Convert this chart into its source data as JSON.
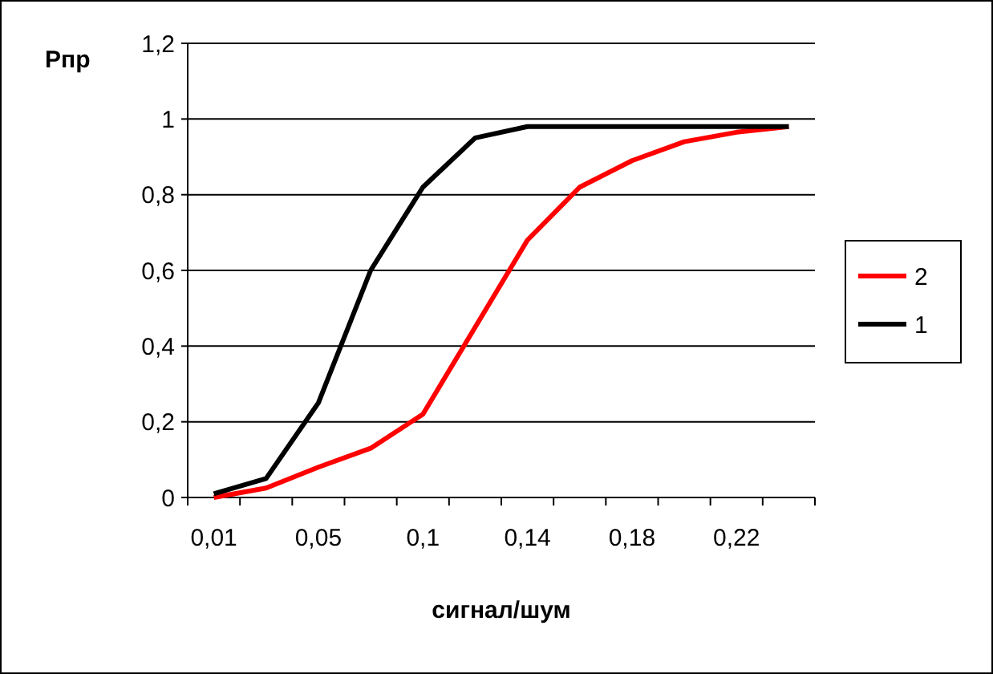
{
  "chart_data": {
    "type": "line",
    "ylabel": "Pпр",
    "xlabel": "сигнал/шум",
    "categories": [
      "0,01",
      null,
      "0,05",
      null,
      "0,1",
      null,
      "0,14",
      null,
      "0,18",
      null,
      "0,22",
      null
    ],
    "series": [
      {
        "name": "2",
        "color": "#ff0000",
        "values": [
          0,
          0.025,
          0.08,
          0.13,
          0.22,
          0.45,
          0.68,
          0.82,
          0.89,
          0.94,
          0.965,
          0.98
        ]
      },
      {
        "name": "1",
        "color": "#000000",
        "values": [
          0.01,
          0.05,
          0.25,
          0.6,
          0.82,
          0.95,
          0.98,
          0.98,
          0.98,
          0.98,
          0.98,
          0.98
        ]
      }
    ],
    "ylim": [
      0,
      1.2
    ],
    "yticks": [
      0,
      {
        "value": 0.2,
        "label": "0,2"
      },
      {
        "value": 0.4,
        "label": "0,4"
      },
      {
        "value": 0.6,
        "label": "0,6"
      },
      {
        "value": 0.8,
        "label": "0,8"
      },
      1,
      {
        "value": 1.2,
        "label": "1,2"
      }
    ],
    "grid": "y",
    "legend": "right",
    "marker": "none",
    "line_style": "solid"
  }
}
